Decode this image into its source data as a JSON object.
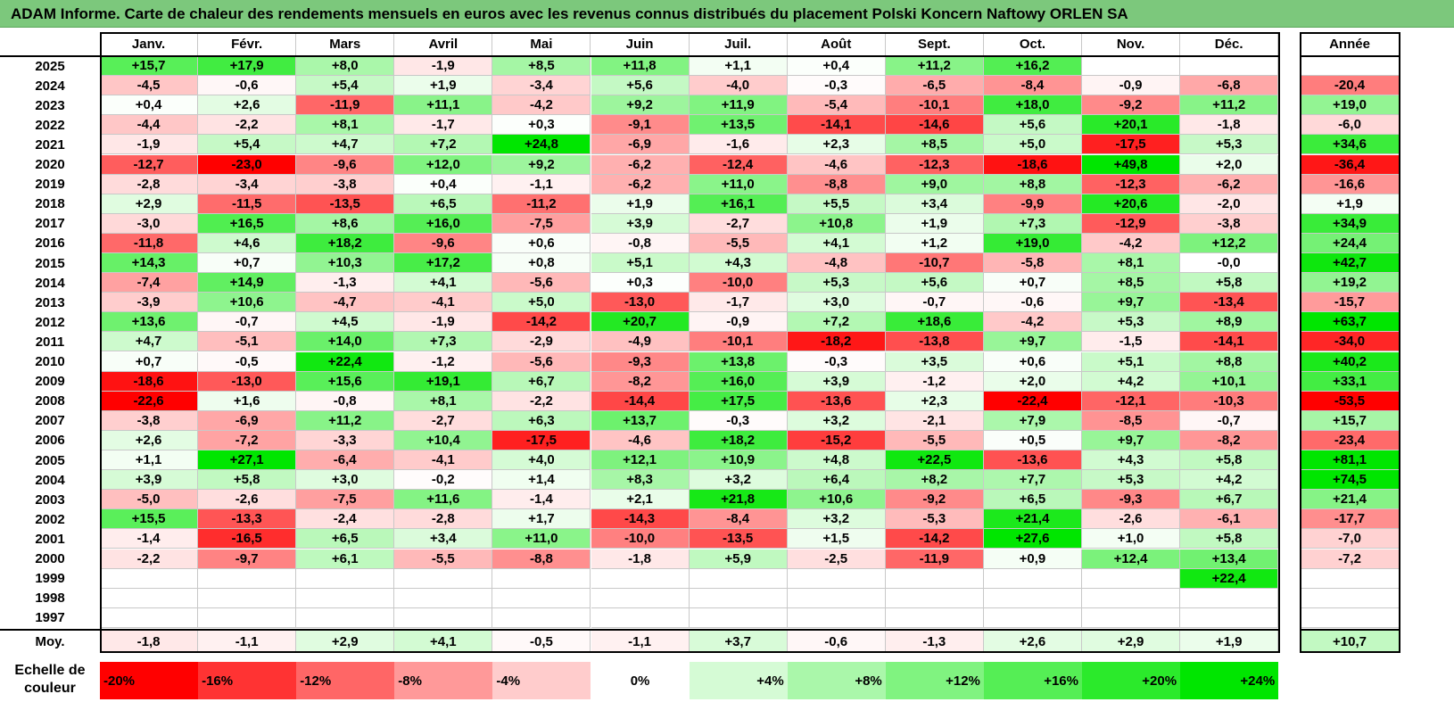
{
  "title": "ADAM Informe. Carte de chaleur des rendements mensuels en euros avec les revenus connus distribués du placement Polski Koncern Naftowy ORLEN SA",
  "chart_data": {
    "type": "heatmap",
    "columns": [
      "Janv.",
      "Févr.",
      "Mars",
      "Avril",
      "Mai",
      "Juin",
      "Juil.",
      "Août",
      "Sept.",
      "Oct.",
      "Nov.",
      "Déc."
    ],
    "year_column": "Année",
    "avg_label": "Moy.",
    "rows": [
      {
        "year": "2025",
        "values": [
          "+15,7",
          "+17,9",
          "+8,0",
          "-1,9",
          "+8,5",
          "+11,8",
          "+1,1",
          "+0,4",
          "+11,2",
          "+16,2",
          "",
          ""
        ],
        "annual": ""
      },
      {
        "year": "2024",
        "values": [
          "-4,5",
          "-0,6",
          "+5,4",
          "+1,9",
          "-3,4",
          "+5,6",
          "-4,0",
          "-0,3",
          "-6,5",
          "-8,4",
          "-0,9",
          "-6,8"
        ],
        "annual": "-20,4"
      },
      {
        "year": "2023",
        "values": [
          "+0,4",
          "+2,6",
          "-11,9",
          "+11,1",
          "-4,2",
          "+9,2",
          "+11,9",
          "-5,4",
          "-10,1",
          "+18,0",
          "-9,2",
          "+11,2"
        ],
        "annual": "+19,0"
      },
      {
        "year": "2022",
        "values": [
          "-4,4",
          "-2,2",
          "+8,1",
          "-1,7",
          "+0,3",
          "-9,1",
          "+13,5",
          "-14,1",
          "-14,6",
          "+5,6",
          "+20,1",
          "-1,8"
        ],
        "annual": "-6,0"
      },
      {
        "year": "2021",
        "values": [
          "-1,9",
          "+5,4",
          "+4,7",
          "+7,2",
          "+24,8",
          "-6,9",
          "-1,6",
          "+2,3",
          "+8,5",
          "+5,0",
          "-17,5",
          "+5,3"
        ],
        "annual": "+34,6"
      },
      {
        "year": "2020",
        "values": [
          "-12,7",
          "-23,0",
          "-9,6",
          "+12,0",
          "+9,2",
          "-6,2",
          "-12,4",
          "-4,6",
          "-12,3",
          "-18,6",
          "+49,8",
          "+2,0"
        ],
        "annual": "-36,4"
      },
      {
        "year": "2019",
        "values": [
          "-2,8",
          "-3,4",
          "-3,8",
          "+0,4",
          "-1,1",
          "-6,2",
          "+11,0",
          "-8,8",
          "+9,0",
          "+8,8",
          "-12,3",
          "-6,2"
        ],
        "annual": "-16,6"
      },
      {
        "year": "2018",
        "values": [
          "+2,9",
          "-11,5",
          "-13,5",
          "+6,5",
          "-11,2",
          "+1,9",
          "+16,1",
          "+5,5",
          "+3,4",
          "-9,9",
          "+20,6",
          "-2,0"
        ],
        "annual": "+1,9"
      },
      {
        "year": "2017",
        "values": [
          "-3,0",
          "+16,5",
          "+8,6",
          "+16,0",
          "-7,5",
          "+3,9",
          "-2,7",
          "+10,8",
          "+1,9",
          "+7,3",
          "-12,9",
          "-3,8"
        ],
        "annual": "+34,9"
      },
      {
        "year": "2016",
        "values": [
          "-11,8",
          "+4,6",
          "+18,2",
          "-9,6",
          "+0,6",
          "-0,8",
          "-5,5",
          "+4,1",
          "+1,2",
          "+19,0",
          "-4,2",
          "+12,2"
        ],
        "annual": "+24,4"
      },
      {
        "year": "2015",
        "values": [
          "+14,3",
          "+0,7",
          "+10,3",
          "+17,2",
          "+0,8",
          "+5,1",
          "+4,3",
          "-4,8",
          "-10,7",
          "-5,8",
          "+8,1",
          "-0,0"
        ],
        "annual": "+42,7"
      },
      {
        "year": "2014",
        "values": [
          "-7,4",
          "+14,9",
          "-1,3",
          "+4,1",
          "-5,6",
          "+0,3",
          "-10,0",
          "+5,3",
          "+5,6",
          "+0,7",
          "+8,5",
          "+5,8"
        ],
        "annual": "+19,2"
      },
      {
        "year": "2013",
        "values": [
          "-3,9",
          "+10,6",
          "-4,7",
          "-4,1",
          "+5,0",
          "-13,0",
          "-1,7",
          "+3,0",
          "-0,7",
          "-0,6",
          "+9,7",
          "-13,4"
        ],
        "annual": "-15,7"
      },
      {
        "year": "2012",
        "values": [
          "+13,6",
          "-0,7",
          "+4,5",
          "-1,9",
          "-14,2",
          "+20,7",
          "-0,9",
          "+7,2",
          "+18,6",
          "-4,2",
          "+5,3",
          "+8,9"
        ],
        "annual": "+63,7"
      },
      {
        "year": "2011",
        "values": [
          "+4,7",
          "-5,1",
          "+14,0",
          "+7,3",
          "-2,9",
          "-4,9",
          "-10,1",
          "-18,2",
          "-13,8",
          "+9,7",
          "-1,5",
          "-14,1"
        ],
        "annual": "-34,0"
      },
      {
        "year": "2010",
        "values": [
          "+0,7",
          "-0,5",
          "+22,4",
          "-1,2",
          "-5,6",
          "-9,3",
          "+13,8",
          "-0,3",
          "+3,5",
          "+0,6",
          "+5,1",
          "+8,8"
        ],
        "annual": "+40,2"
      },
      {
        "year": "2009",
        "values": [
          "-18,6",
          "-13,0",
          "+15,6",
          "+19,1",
          "+6,7",
          "-8,2",
          "+16,0",
          "+3,9",
          "-1,2",
          "+2,0",
          "+4,2",
          "+10,1"
        ],
        "annual": "+33,1"
      },
      {
        "year": "2008",
        "values": [
          "-22,6",
          "+1,6",
          "-0,8",
          "+8,1",
          "-2,2",
          "-14,4",
          "+17,5",
          "-13,6",
          "+2,3",
          "-22,4",
          "-12,1",
          "-10,3"
        ],
        "annual": "-53,5"
      },
      {
        "year": "2007",
        "values": [
          "-3,8",
          "-6,9",
          "+11,2",
          "-2,7",
          "+6,3",
          "+13,7",
          "-0,3",
          "+3,2",
          "-2,1",
          "+7,9",
          "-8,5",
          "-0,7"
        ],
        "annual": "+15,7"
      },
      {
        "year": "2006",
        "values": [
          "+2,6",
          "-7,2",
          "-3,3",
          "+10,4",
          "-17,5",
          "-4,6",
          "+18,2",
          "-15,2",
          "-5,5",
          "+0,5",
          "+9,7",
          "-8,2"
        ],
        "annual": "-23,4"
      },
      {
        "year": "2005",
        "values": [
          "+1,1",
          "+27,1",
          "-6,4",
          "-4,1",
          "+4,0",
          "+12,1",
          "+10,9",
          "+4,8",
          "+22,5",
          "-13,6",
          "+4,3",
          "+5,8"
        ],
        "annual": "+81,1"
      },
      {
        "year": "2004",
        "values": [
          "+3,9",
          "+5,8",
          "+3,0",
          "-0,2",
          "+1,4",
          "+8,3",
          "+3,2",
          "+6,4",
          "+8,2",
          "+7,7",
          "+5,3",
          "+4,2"
        ],
        "annual": "+74,5"
      },
      {
        "year": "2003",
        "values": [
          "-5,0",
          "-2,6",
          "-7,5",
          "+11,6",
          "-1,4",
          "+2,1",
          "+21,8",
          "+10,6",
          "-9,2",
          "+6,5",
          "-9,3",
          "+6,7"
        ],
        "annual": "+21,4"
      },
      {
        "year": "2002",
        "values": [
          "+15,5",
          "-13,3",
          "-2,4",
          "-2,8",
          "+1,7",
          "-14,3",
          "-8,4",
          "+3,2",
          "-5,3",
          "+21,4",
          "-2,6",
          "-6,1"
        ],
        "annual": "-17,7"
      },
      {
        "year": "2001",
        "values": [
          "-1,4",
          "-16,5",
          "+6,5",
          "+3,4",
          "+11,0",
          "-10,0",
          "-13,5",
          "+1,5",
          "-14,2",
          "+27,6",
          "+1,0",
          "+5,8"
        ],
        "annual": "-7,0"
      },
      {
        "year": "2000",
        "values": [
          "-2,2",
          "-9,7",
          "+6,1",
          "-5,5",
          "-8,8",
          "-1,8",
          "+5,9",
          "-2,5",
          "-11,9",
          "+0,9",
          "+12,4",
          "+13,4"
        ],
        "annual": "-7,2"
      },
      {
        "year": "1999",
        "values": [
          "",
          "",
          "",
          "",
          "",
          "",
          "",
          "",
          "",
          "",
          "",
          "+22,4"
        ],
        "annual": ""
      },
      {
        "year": "1998",
        "values": [
          "",
          "",
          "",
          "",
          "",
          "",
          "",
          "",
          "",
          "",
          "",
          ""
        ],
        "annual": ""
      },
      {
        "year": "1997",
        "values": [
          "",
          "",
          "",
          "",
          "",
          "",
          "",
          "",
          "",
          "",
          "",
          ""
        ],
        "annual": ""
      }
    ],
    "averages": [
      "-1,8",
      "-1,1",
      "+2,9",
      "+4,1",
      "-0,5",
      "-1,1",
      "+3,7",
      "-0,6",
      "-1,3",
      "+2,6",
      "+2,9",
      "+1,9"
    ],
    "average_annual": "+10,7",
    "scale_label": "Echelle de couleur",
    "scale": [
      "-20%",
      "-16%",
      "-12%",
      "-8%",
      "-4%",
      "0%",
      "+4%",
      "+8%",
      "+12%",
      "+16%",
      "+20%",
      "+24%"
    ],
    "colors": {
      "negative": "#ff0000",
      "positive": "#00e600",
      "neutral": "#ffffff",
      "title_bg": "#7cc87c"
    }
  }
}
